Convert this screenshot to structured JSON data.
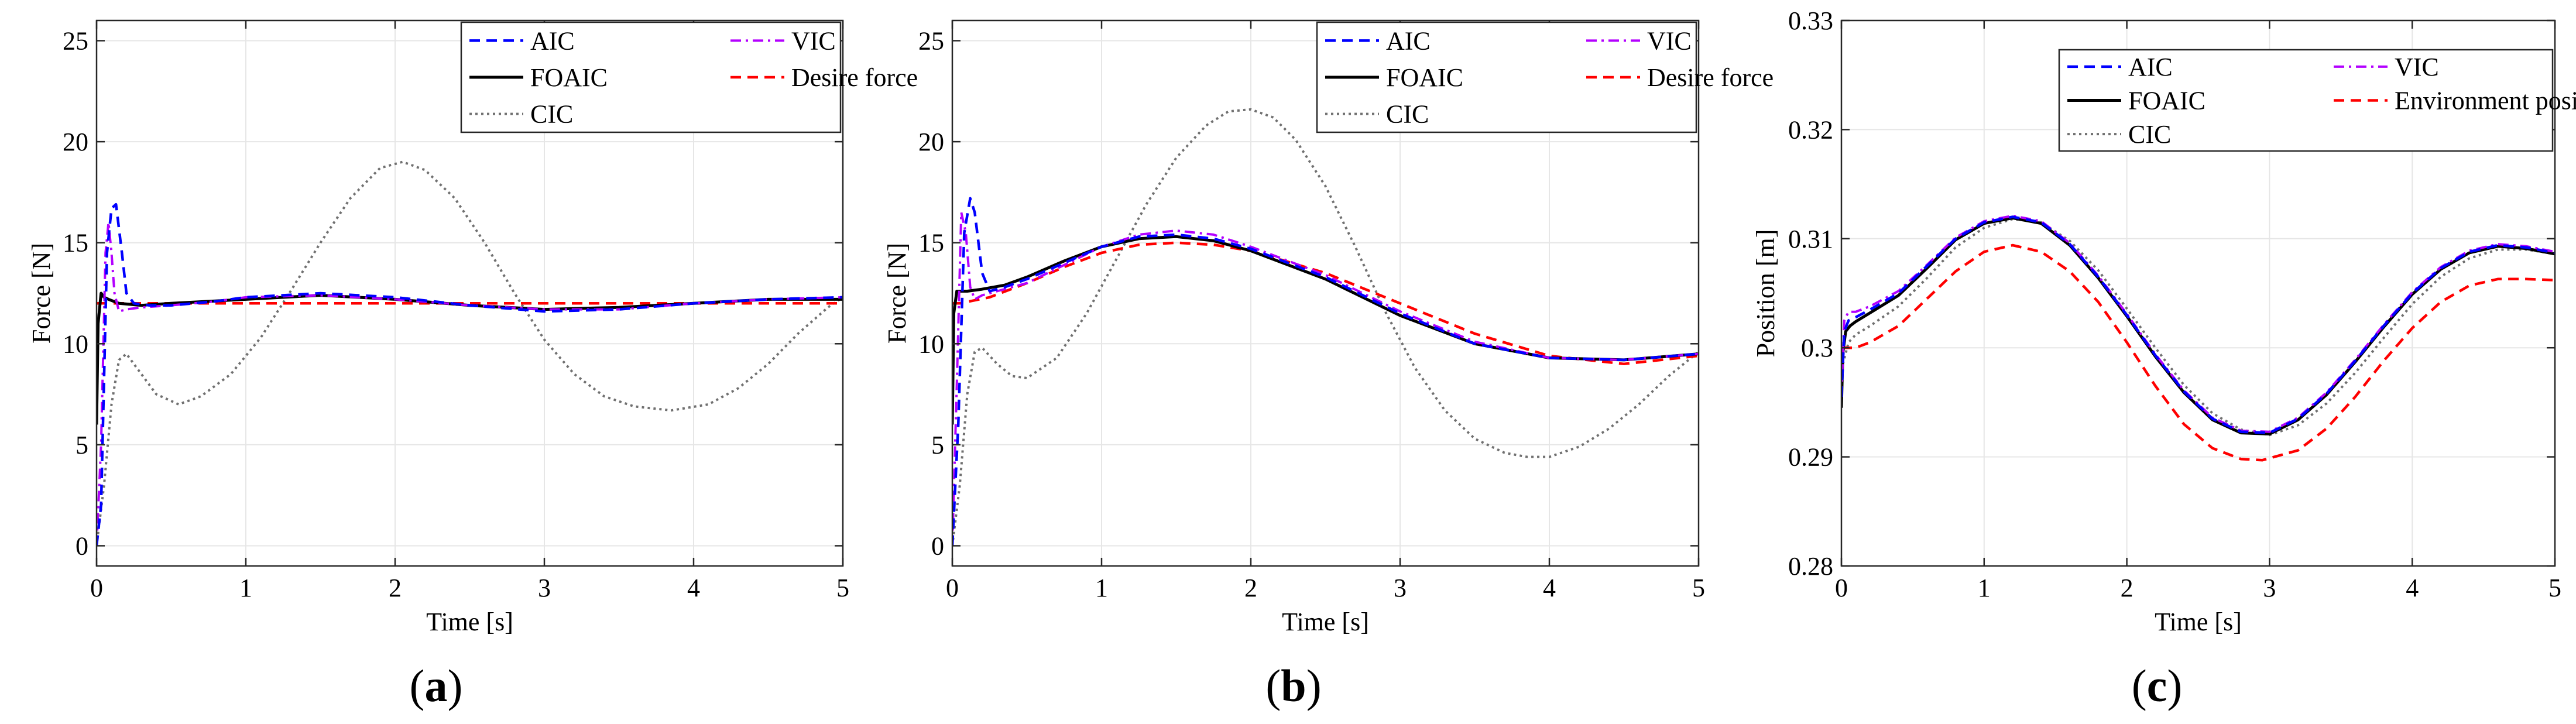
{
  "figure": {
    "colors": {
      "AIC": "#0000ff",
      "VIC": "#b300ff",
      "FOAIC": "#000000",
      "desired": "#ff0000",
      "CIC": "#707070",
      "grid": "#e6e6e6"
    }
  },
  "chart_data": [
    {
      "panel": "a",
      "caption": {
        "open": "(",
        "letter": "a",
        "close": ")"
      },
      "type": "line",
      "xlabel": "Time [s]",
      "ylabel": "Force [N]",
      "xlim": [
        0,
        5
      ],
      "ylim": [
        -1,
        26
      ],
      "xticks": [
        0,
        1,
        2,
        3,
        4,
        5
      ],
      "xtick_labels": [
        "0",
        "1",
        "2",
        "3",
        "4",
        "5"
      ],
      "yticks": [
        0,
        5,
        10,
        15,
        20,
        25
      ],
      "ytick_labels": [
        "0",
        "5",
        "10",
        "15",
        "20",
        "25"
      ],
      "grid": true,
      "legend_position": "top-right",
      "legend_layout": [
        [
          "AIC",
          "VIC"
        ],
        [
          "FOAIC",
          "Desire force"
        ],
        [
          "CIC"
        ]
      ],
      "series": [
        {
          "name": "AIC",
          "style": "dashed",
          "color": "#0000ff",
          "x": [
            0,
            0.03,
            0.07,
            0.1,
            0.13,
            0.17,
            0.2,
            0.25,
            0.35,
            0.5,
            0.8,
            1.0,
            1.5,
            2.0,
            2.5,
            3.0,
            3.5,
            4.0,
            4.5,
            5.0
          ],
          "y": [
            0,
            2,
            14.5,
            16.7,
            16.9,
            14.5,
            12.5,
            12.0,
            11.9,
            11.9,
            12.1,
            12.3,
            12.5,
            12.3,
            11.9,
            11.6,
            11.7,
            12.0,
            12.2,
            12.3
          ]
        },
        {
          "name": "VIC",
          "style": "dashdot",
          "color": "#b300ff",
          "x": [
            0,
            0.03,
            0.06,
            0.08,
            0.1,
            0.12,
            0.15,
            0.2,
            0.3,
            0.5,
            0.8,
            1.0,
            1.5,
            2.0,
            2.5,
            3.0,
            3.5,
            4.0,
            4.5,
            5.0
          ],
          "y": [
            0,
            5,
            14.5,
            16.0,
            14.5,
            12.5,
            11.6,
            11.7,
            11.8,
            11.9,
            12.1,
            12.3,
            12.4,
            12.2,
            11.9,
            11.7,
            11.7,
            12.0,
            12.2,
            12.3
          ]
        },
        {
          "name": "FOAIC",
          "style": "solid",
          "color": "#000000",
          "x": [
            0,
            0.01,
            0.03,
            0.05,
            0.08,
            0.15,
            0.3,
            0.5,
            1.0,
            1.5,
            2.0,
            2.5,
            3.0,
            3.5,
            4.0,
            4.5,
            5.0
          ],
          "y": [
            6,
            11.0,
            12.5,
            12.3,
            12.2,
            12.0,
            11.9,
            12.0,
            12.2,
            12.4,
            12.2,
            11.9,
            11.7,
            11.8,
            12.0,
            12.2,
            12.2
          ]
        },
        {
          "name": "Desire force",
          "style": "dashed",
          "color": "#ff0000",
          "x": [
            0,
            0.02,
            0.05,
            0.5,
            1.0,
            2.0,
            3.0,
            4.0,
            5.0
          ],
          "y": [
            12.0,
            12.0,
            12.0,
            12.0,
            12.0,
            12.0,
            12.0,
            12.0,
            12.0
          ]
        },
        {
          "name": "CIC",
          "style": "dotted",
          "color": "#707070",
          "x": [
            0,
            0.05,
            0.1,
            0.15,
            0.2,
            0.3,
            0.4,
            0.55,
            0.7,
            0.9,
            1.1,
            1.3,
            1.5,
            1.7,
            1.9,
            2.05,
            2.2,
            2.4,
            2.6,
            2.8,
            3.0,
            3.2,
            3.4,
            3.6,
            3.85,
            4.1,
            4.3,
            4.5,
            4.7,
            4.9,
            5.0
          ],
          "y": [
            0,
            3,
            7,
            9.2,
            9.5,
            8.5,
            7.5,
            7.0,
            7.4,
            8.5,
            10.3,
            12.6,
            15.0,
            17.2,
            18.7,
            19.0,
            18.6,
            17.2,
            15.0,
            12.5,
            10.2,
            8.5,
            7.4,
            6.9,
            6.7,
            7.0,
            7.8,
            9.0,
            10.5,
            11.8,
            12.3
          ]
        }
      ]
    },
    {
      "panel": "b",
      "caption": {
        "open": "(",
        "letter": "b",
        "close": ")"
      },
      "type": "line",
      "xlabel": "Time [s]",
      "ylabel": "Force [N]",
      "xlim": [
        0,
        5
      ],
      "ylim": [
        -1,
        26
      ],
      "xticks": [
        0,
        1,
        2,
        3,
        4,
        5
      ],
      "xtick_labels": [
        "0",
        "1",
        "2",
        "3",
        "4",
        "5"
      ],
      "yticks": [
        0,
        5,
        10,
        15,
        20,
        25
      ],
      "ytick_labels": [
        "0",
        "5",
        "10",
        "15",
        "20",
        "25"
      ],
      "grid": true,
      "legend_position": "top-right",
      "legend_layout": [
        [
          "AIC",
          "VIC"
        ],
        [
          "FOAIC",
          "Desire force"
        ],
        [
          "CIC"
        ]
      ],
      "series": [
        {
          "name": "AIC",
          "style": "dashed",
          "color": "#0000ff",
          "x": [
            0,
            0.04,
            0.08,
            0.12,
            0.15,
            0.2,
            0.25,
            0.35,
            0.5,
            0.75,
            1.0,
            1.25,
            1.5,
            1.75,
            2.0,
            2.5,
            3.0,
            3.5,
            4.0,
            4.5,
            5.0
          ],
          "y": [
            0,
            6,
            15.5,
            17.2,
            16.5,
            13.5,
            12.6,
            12.8,
            13.2,
            14.0,
            14.8,
            15.3,
            15.4,
            15.2,
            14.7,
            13.3,
            11.5,
            10.0,
            9.3,
            9.2,
            9.5
          ]
        },
        {
          "name": "VIC",
          "style": "dashdot",
          "color": "#b300ff",
          "x": [
            0,
            0.03,
            0.06,
            0.09,
            0.12,
            0.15,
            0.2,
            0.3,
            0.5,
            0.75,
            1.0,
            1.25,
            1.5,
            1.75,
            2.0,
            2.5,
            3.0,
            3.5,
            4.0,
            4.5,
            5.0
          ],
          "y": [
            0,
            8,
            16.5,
            15.5,
            12.8,
            12.2,
            12.4,
            12.6,
            13.0,
            13.9,
            14.8,
            15.4,
            15.6,
            15.4,
            14.8,
            13.4,
            11.6,
            10.1,
            9.3,
            9.2,
            9.5
          ]
        },
        {
          "name": "FOAIC",
          "style": "solid",
          "color": "#000000",
          "x": [
            0,
            0.01,
            0.03,
            0.06,
            0.1,
            0.2,
            0.35,
            0.5,
            0.75,
            1.0,
            1.25,
            1.5,
            1.75,
            2.0,
            2.5,
            3.0,
            3.5,
            4.0,
            4.5,
            5.0
          ],
          "y": [
            6,
            11.5,
            12.6,
            12.6,
            12.6,
            12.7,
            12.9,
            13.3,
            14.1,
            14.8,
            15.2,
            15.3,
            15.1,
            14.6,
            13.2,
            11.4,
            10.0,
            9.3,
            9.2,
            9.5
          ]
        },
        {
          "name": "Desire force",
          "style": "dashed",
          "color": "#ff0000",
          "x": [
            0,
            0.02,
            0.05,
            0.25,
            0.5,
            0.75,
            1.0,
            1.25,
            1.5,
            1.75,
            2.0,
            2.5,
            3.0,
            3.5,
            4.0,
            4.5,
            5.0
          ],
          "y": [
            12.0,
            12.0,
            12.0,
            12.3,
            13.0,
            13.8,
            14.5,
            14.9,
            15.0,
            14.9,
            14.6,
            13.5,
            12.0,
            10.5,
            9.4,
            9.0,
            9.4
          ]
        },
        {
          "name": "CIC",
          "style": "dotted",
          "color": "#707070",
          "x": [
            0,
            0.05,
            0.1,
            0.15,
            0.2,
            0.3,
            0.4,
            0.5,
            0.7,
            0.9,
            1.1,
            1.3,
            1.5,
            1.7,
            1.85,
            2.0,
            2.15,
            2.3,
            2.5,
            2.7,
            2.9,
            3.1,
            3.3,
            3.5,
            3.7,
            3.85,
            4.0,
            4.2,
            4.4,
            4.6,
            4.8,
            5.0
          ],
          "y": [
            0,
            3,
            7.5,
            9.6,
            9.8,
            9.0,
            8.4,
            8.3,
            9.3,
            11.5,
            14.2,
            16.9,
            19.2,
            20.8,
            21.5,
            21.6,
            21.2,
            20.1,
            17.8,
            14.8,
            11.6,
            8.8,
            6.7,
            5.3,
            4.6,
            4.4,
            4.4,
            4.9,
            5.8,
            7.0,
            8.4,
            9.6
          ]
        }
      ]
    },
    {
      "panel": "c",
      "caption": {
        "open": "(",
        "letter": "c",
        "close": ")"
      },
      "type": "line",
      "xlabel": "Time [s]",
      "ylabel": "Position [m]",
      "xlim": [
        0,
        5
      ],
      "ylim": [
        0.28,
        0.33
      ],
      "xticks": [
        0,
        1,
        2,
        3,
        4,
        5
      ],
      "xtick_labels": [
        "0",
        "1",
        "2",
        "3",
        "4",
        "5"
      ],
      "yticks": [
        0.28,
        0.29,
        0.3,
        0.31,
        0.32,
        0.33
      ],
      "ytick_labels": [
        "0.28",
        "0.29",
        "0.3",
        "0.31",
        "0.32",
        "0.33"
      ],
      "grid": true,
      "legend_position": "top-right",
      "legend_layout": [
        [
          "AIC",
          "VIC"
        ],
        [
          "FOAIC",
          "Environment position"
        ],
        [
          "CIC"
        ]
      ],
      "series": [
        {
          "name": "AIC",
          "style": "dashed",
          "color": "#0000ff",
          "x": [
            0,
            0.02,
            0.05,
            0.1,
            0.2,
            0.4,
            0.6,
            0.8,
            1.0,
            1.2,
            1.4,
            1.6,
            1.8,
            2.0,
            2.2,
            2.4,
            2.6,
            2.8,
            3.0,
            3.2,
            3.4,
            3.6,
            3.8,
            4.0,
            4.2,
            4.4,
            4.6,
            4.8,
            5.0
          ],
          "y": [
            0.2955,
            0.3015,
            0.3025,
            0.3028,
            0.3035,
            0.305,
            0.3075,
            0.31,
            0.3115,
            0.312,
            0.3115,
            0.3095,
            0.3065,
            0.303,
            0.2993,
            0.296,
            0.2935,
            0.2923,
            0.2922,
            0.2935,
            0.2958,
            0.2988,
            0.302,
            0.305,
            0.3073,
            0.3088,
            0.3094,
            0.3092,
            0.3087
          ]
        },
        {
          "name": "VIC",
          "style": "dashdot",
          "color": "#b300ff",
          "x": [
            0,
            0.02,
            0.05,
            0.1,
            0.2,
            0.4,
            0.6,
            0.8,
            1.0,
            1.2,
            1.4,
            1.6,
            1.8,
            2.0,
            2.2,
            2.4,
            2.6,
            2.8,
            3.0,
            3.2,
            3.4,
            3.6,
            3.8,
            4.0,
            4.2,
            4.4,
            4.6,
            4.8,
            5.0
          ],
          "y": [
            0.2955,
            0.3025,
            0.3033,
            0.3033,
            0.3038,
            0.3052,
            0.3076,
            0.3101,
            0.3116,
            0.3121,
            0.3116,
            0.3096,
            0.3066,
            0.3031,
            0.2994,
            0.2961,
            0.2936,
            0.2924,
            0.2923,
            0.2936,
            0.2959,
            0.2989,
            0.3021,
            0.3051,
            0.3074,
            0.3089,
            0.3095,
            0.3093,
            0.3088
          ]
        },
        {
          "name": "FOAIC",
          "style": "solid",
          "color": "#000000",
          "x": [
            0,
            0.01,
            0.03,
            0.06,
            0.1,
            0.2,
            0.4,
            0.6,
            0.8,
            1.0,
            1.2,
            1.4,
            1.6,
            1.8,
            2.0,
            2.2,
            2.4,
            2.6,
            2.8,
            3.0,
            3.2,
            3.4,
            3.6,
            3.8,
            4.0,
            4.2,
            4.4,
            4.6,
            4.8,
            5.0
          ],
          "y": [
            0.2945,
            0.2995,
            0.3015,
            0.302,
            0.3024,
            0.3032,
            0.3048,
            0.3073,
            0.3099,
            0.3114,
            0.3119,
            0.3114,
            0.3094,
            0.3064,
            0.3029,
            0.2992,
            0.2959,
            0.2934,
            0.2922,
            0.2921,
            0.2934,
            0.2957,
            0.2987,
            0.3019,
            0.3049,
            0.3072,
            0.3087,
            0.3093,
            0.3091,
            0.3086
          ]
        },
        {
          "name": "Environment position",
          "style": "dashed",
          "color": "#ff0000",
          "x": [
            0,
            0.1,
            0.2,
            0.4,
            0.6,
            0.8,
            1.0,
            1.2,
            1.4,
            1.6,
            1.8,
            2.0,
            2.2,
            2.4,
            2.6,
            2.8,
            2.95,
            3.2,
            3.4,
            3.6,
            3.8,
            4.0,
            4.2,
            4.4,
            4.6,
            4.8,
            5.0
          ],
          "y": [
            0.3,
            0.3,
            0.3005,
            0.302,
            0.3045,
            0.307,
            0.3088,
            0.3094,
            0.3088,
            0.307,
            0.3042,
            0.3005,
            0.2965,
            0.293,
            0.2908,
            0.2898,
            0.2897,
            0.2906,
            0.2926,
            0.2955,
            0.2988,
            0.3018,
            0.3042,
            0.3057,
            0.3063,
            0.3063,
            0.3062
          ]
        },
        {
          "name": "CIC",
          "style": "dotted",
          "color": "#707070",
          "x": [
            0,
            0.05,
            0.1,
            0.2,
            0.4,
            0.6,
            0.8,
            1.0,
            1.2,
            1.4,
            1.6,
            1.8,
            2.0,
            2.2,
            2.4,
            2.6,
            2.8,
            3.0,
            3.2,
            3.4,
            3.6,
            3.8,
            4.0,
            4.2,
            4.4,
            4.6,
            4.8,
            5.0
          ],
          "y": [
            0.298,
            0.3005,
            0.3012,
            0.302,
            0.3038,
            0.3064,
            0.3092,
            0.311,
            0.3118,
            0.3115,
            0.3098,
            0.3071,
            0.3036,
            0.3,
            0.2966,
            0.294,
            0.2925,
            0.292,
            0.2929,
            0.2949,
            0.2977,
            0.3009,
            0.304,
            0.3065,
            0.3082,
            0.309,
            0.309,
            0.3086
          ]
        }
      ]
    }
  ]
}
